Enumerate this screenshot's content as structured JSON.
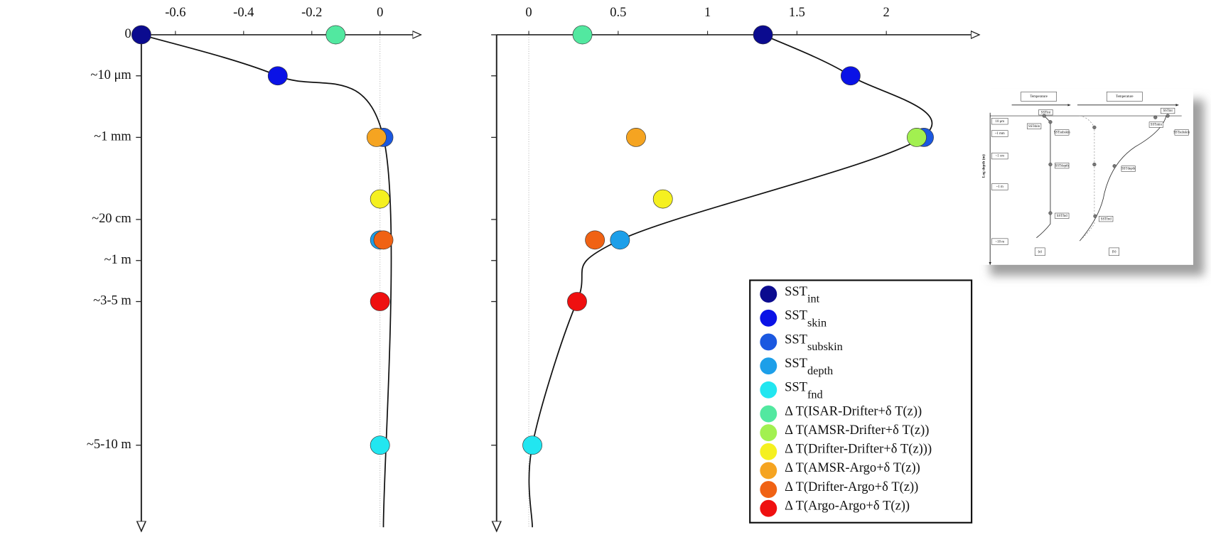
{
  "chart_data": {
    "type": "scatter",
    "y_inverted": true,
    "ylim": [
      0,
      12
    ],
    "yticks": [
      0,
      {
        "value": 1,
        "label": "~10 μm"
      },
      {
        "value": 2.5,
        "label": "~1 mm"
      },
      {
        "value": 4.5,
        "label": "~20 cm"
      },
      {
        "value": 5.5,
        "label": "~1 m"
      },
      {
        "value": 6.5,
        "label": "~3-5 m"
      },
      {
        "value": 10,
        "label": "~5-10 m"
      }
    ],
    "panels": [
      {
        "xlim": [
          -0.7,
          0.12
        ],
        "xticks": [
          -0.6,
          -0.4,
          -0.2,
          0
        ],
        "ytick_labels": true,
        "curve": {
          "x": [
            -0.7,
            -0.3,
            0.01,
            0.01
          ],
          "y": [
            0,
            1,
            2.5,
            12
          ]
        }
      },
      {
        "xlim": [
          -0.18,
          2.52
        ],
        "xticks": [
          0,
          0.5,
          1,
          1.5,
          2
        ],
        "ytick_labels": false,
        "curve": {
          "x": [
            1.31,
            1.8,
            2.2,
            0.51,
            0.27,
            0.02,
            0.02
          ],
          "y": [
            0,
            1,
            2.5,
            5,
            6.5,
            10,
            12
          ]
        }
      }
    ],
    "series": [
      {
        "name": "SST",
        "sub": "int",
        "color": "#0b0b8f",
        "x": [
          -0.7,
          1.31
        ],
        "y": [
          0,
          0
        ]
      },
      {
        "name": "SST",
        "sub": "skin",
        "color": "#0a12e6",
        "x": [
          -0.3,
          1.8
        ],
        "y": [
          1,
          1
        ]
      },
      {
        "name": "SST",
        "sub": "subskin",
        "color": "#1b58e0",
        "x": [
          0.01,
          2.21
        ],
        "y": [
          2.5,
          2.5
        ]
      },
      {
        "name": "SST",
        "sub": "depth",
        "color": "#1d9fe9",
        "x": [
          0,
          0.51
        ],
        "y": [
          5,
          5
        ]
      },
      {
        "name": "SST",
        "sub": "fnd",
        "color": "#22e6f0",
        "x": [
          0,
          0.02
        ],
        "y": [
          10,
          10
        ]
      },
      {
        "name": "Δ T(ISAR-Drifter+δ T(z))",
        "color": "#52e8a0",
        "x": [
          -0.13,
          0.3
        ],
        "y": [
          0,
          0
        ]
      },
      {
        "name": "Δ T(AMSR-Drifter+δ T(z))",
        "color": "#a2f050",
        "x": [
          null,
          2.17
        ],
        "y": [
          null,
          2.5
        ]
      },
      {
        "name": "Δ T(Drifter-Drifter+δ T(z)))",
        "color": "#f5f020",
        "x": [
          0,
          0.75
        ],
        "y": [
          4,
          4
        ]
      },
      {
        "name": "Δ T(AMSR-Argo+δ T(z))",
        "color": "#f5a421",
        "x": [
          -0.01,
          0.6
        ],
        "y": [
          2.5,
          2.5
        ]
      },
      {
        "name": "Δ T(Drifter-Argo+δ T(z))",
        "color": "#f06214",
        "x": [
          0.01,
          0.37
        ],
        "y": [
          5,
          5
        ]
      },
      {
        "name": "Δ T(Argo-Argo+δ T(z))",
        "color": "#ef1010",
        "x": [
          0,
          0.27
        ],
        "y": [
          6.5,
          6.5
        ]
      }
    ]
  },
  "inset": {
    "headers": [
      "Temperature",
      "Temperature"
    ],
    "ylabel": "Log depth (m)",
    "depths": [
      "10 μm",
      "~1 mm",
      "~1 cm",
      "~1 m",
      "~10 m"
    ],
    "labels": [
      "SSTint",
      "SSTskin",
      "SSTsubskin",
      "SSTdepth",
      "SSTfnd"
    ],
    "panels": [
      "(a)",
      "(b)"
    ]
  }
}
